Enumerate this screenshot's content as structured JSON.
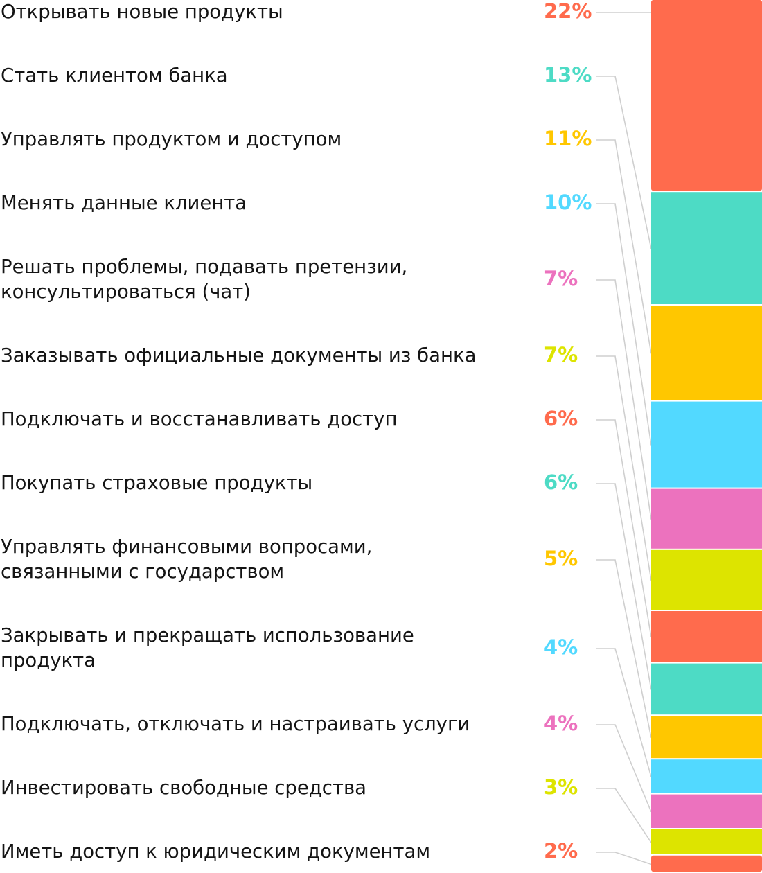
{
  "chart_data": {
    "type": "bar",
    "subtype": "stacked-single-column",
    "categories": [
      [
        "Открывать новые продукты"
      ],
      [
        "Стать клиентом банка"
      ],
      [
        "Управлять продуктом и доступом"
      ],
      [
        "Менять данные клиента"
      ],
      [
        "Решать проблемы, подавать претензии,",
        "консультироваться (чат)"
      ],
      [
        "Заказывать официальные документы из банка"
      ],
      [
        "Подключать и восстанавливать доступ"
      ],
      [
        "Покупать страховые продукты"
      ],
      [
        "Управлять финансовыми вопросами,",
        "связанными с государством"
      ],
      [
        "Закрывать и прекращать использование",
        "продукта"
      ],
      [
        "Подключать, отключать и настраивать услуги"
      ],
      [
        "Инвестировать свободные средства"
      ],
      [
        "Иметь доступ к юридическим документам"
      ]
    ],
    "values": [
      22,
      13,
      11,
      10,
      7,
      7,
      6,
      6,
      5,
      4,
      4,
      3,
      2
    ],
    "value_labels": [
      "22%",
      "13%",
      "11%",
      "10%",
      "7%",
      "7%",
      "6%",
      "6%",
      "5%",
      "4%",
      "4%",
      "3%",
      "2%"
    ],
    "unit": "%",
    "colors": [
      "#FF6B4D",
      "#4DDBC5",
      "#FFC700",
      "#52D9FF",
      "#EC72BE",
      "#DDE400",
      "#FF6B4D",
      "#4DDBC5",
      "#FFC700",
      "#52D9FF",
      "#EC72BE",
      "#DDE400",
      "#FF6B4D"
    ],
    "segment_separator_color": "#ffffff",
    "leader_line_color": "#cfcfcf",
    "grid": false,
    "legend": "none"
  }
}
